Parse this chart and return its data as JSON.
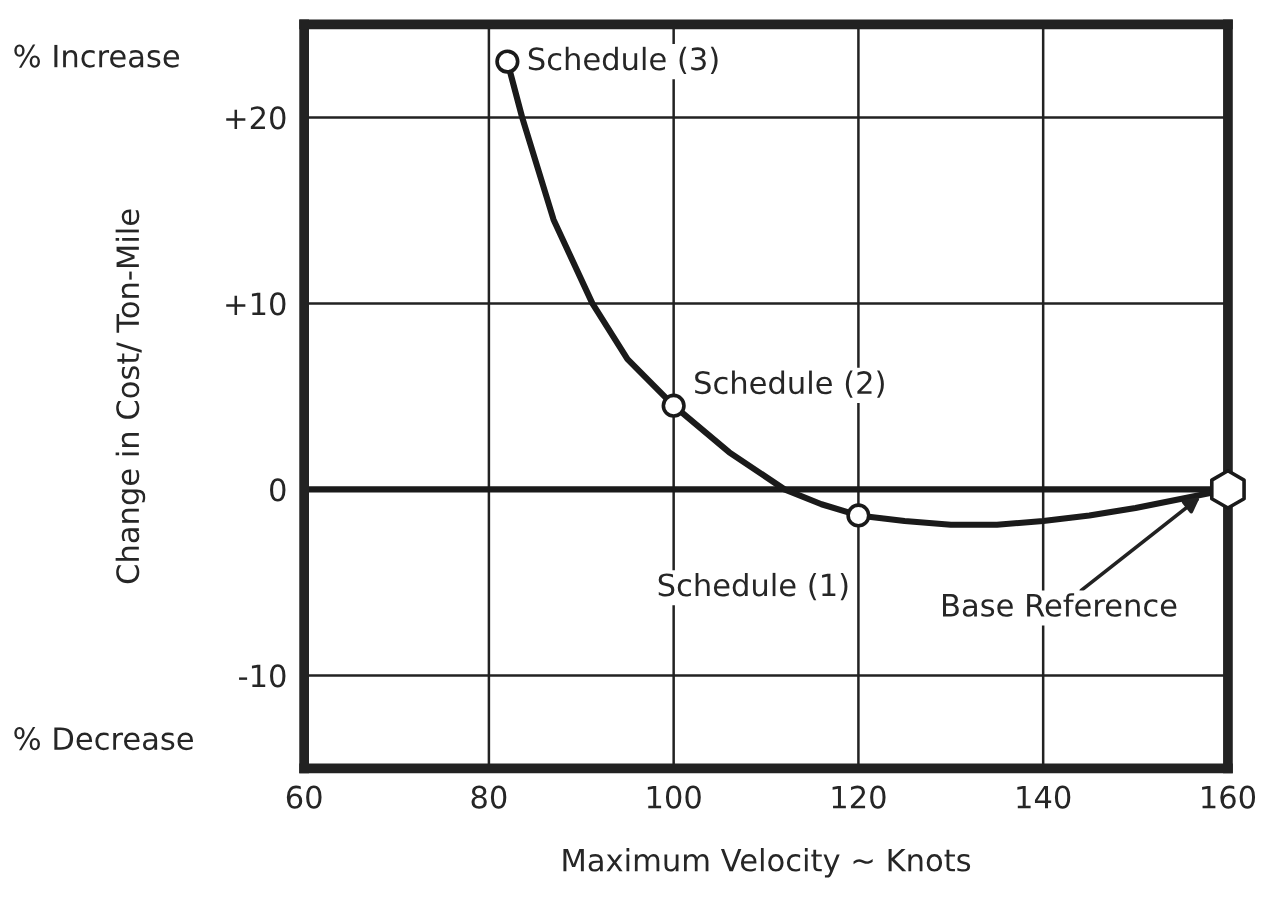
{
  "chart_data": {
    "type": "line",
    "xlabel": "Maximum Velocity ~ Knots",
    "ylabel": "Change in Cost/ Ton-Mile",
    "xlim": [
      60,
      160
    ],
    "ylim": [
      -15,
      25
    ],
    "xticks": [
      60,
      80,
      100,
      120,
      140,
      160
    ],
    "yticks": [
      {
        "value": 20,
        "label": "+20"
      },
      {
        "value": 10,
        "label": "+10"
      },
      0,
      {
        "value": -10,
        "label": "-10"
      }
    ],
    "grid": true,
    "line_style": "solid",
    "series": [
      {
        "color": "#1a1a1a",
        "marker": "none",
        "x": [
          82,
          83.6,
          87,
          91.2,
          95,
          100,
          106,
          112,
          116,
          120,
          125,
          130,
          135,
          140,
          145,
          150,
          155,
          160
        ],
        "values": [
          23,
          20,
          14.5,
          10,
          7,
          4.5,
          2,
          0,
          -0.8,
          -1.4,
          -1.7,
          -1.9,
          -1.9,
          -1.7,
          -1.4,
          -1,
          -0.5,
          0
        ]
      },
      {
        "type": "scatter",
        "color": "#1a1a1a",
        "marker": "circle",
        "x": [
          82,
          100,
          120
        ],
        "values": [
          23,
          4.5,
          -1.4
        ]
      },
      {
        "type": "scatter",
        "color": "#1a1a1a",
        "x": [
          160
        ],
        "values": [
          0
        ]
      }
    ],
    "ref_lines": [
      {
        "axis": "y",
        "value": 0,
        "color": "#1a1a1a"
      }
    ],
    "annotations": [
      "% Increase",
      "% Decrease",
      {
        "text": "Schedule (3)",
        "x": 82,
        "y": 23
      },
      {
        "text": "Schedule (2)",
        "x": 100,
        "y": 4.5
      },
      {
        "text": "Schedule (1)",
        "x": 120,
        "y": -1.4
      },
      {
        "text": "Base Reference",
        "x": 157,
        "y": -0.4
      }
    ]
  }
}
